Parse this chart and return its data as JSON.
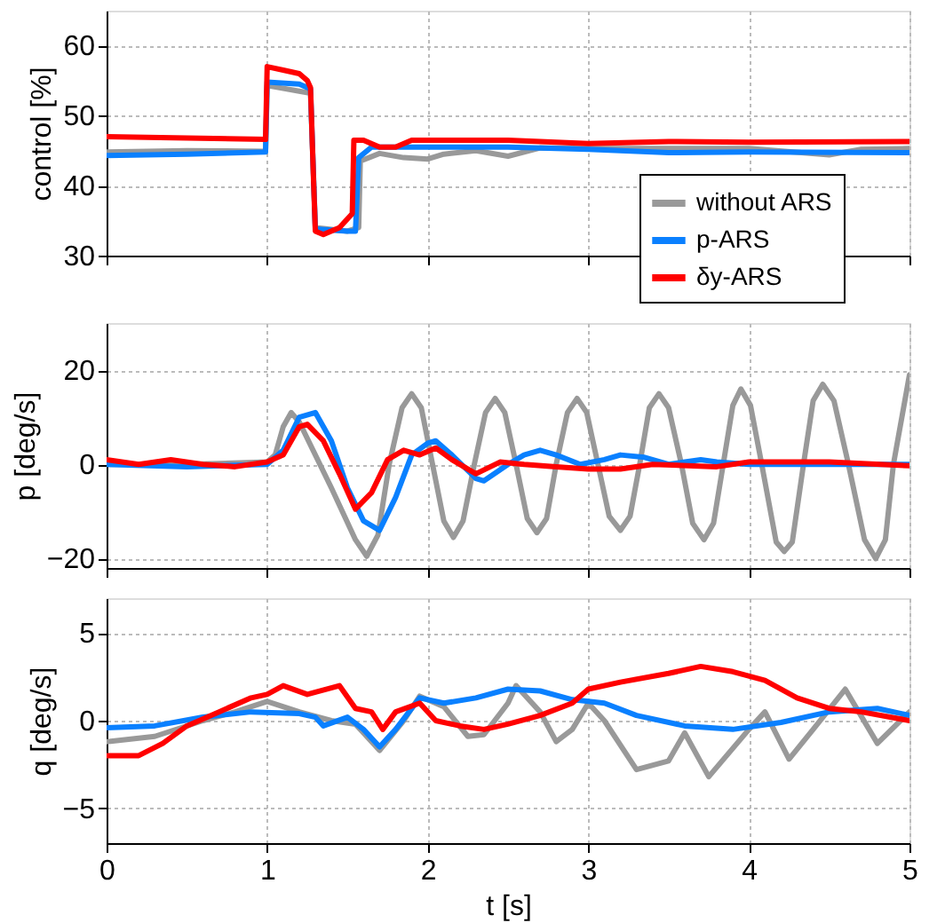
{
  "chart_data": [
    {
      "type": "line",
      "ylabel": "control [%]",
      "xlim": [
        0,
        5
      ],
      "xticks": [
        0,
        1,
        2,
        3,
        4,
        5
      ],
      "ylim": [
        30,
        65
      ],
      "yticks": [
        30,
        40,
        50,
        60
      ],
      "grid": true,
      "legend": "bottom right",
      "tick_labels": "y",
      "series": [
        {
          "name": "without ARS",
          "color": "#999999",
          "x": [
            0,
            0.5,
            0.99,
            1.0,
            1.2,
            1.27,
            1.3,
            1.5,
            1.57,
            1.58,
            1.7,
            1.85,
            2.0,
            2.1,
            2.3,
            2.5,
            2.7,
            3,
            3.5,
            4,
            4.5,
            4.7,
            5
          ],
          "values": [
            44.8,
            45,
            44.9,
            54.3,
            53.5,
            53.2,
            34,
            33.5,
            34,
            43.5,
            44.6,
            44,
            43.8,
            44.5,
            45,
            44.2,
            45.4,
            45.3,
            45.3,
            45.3,
            44.4,
            45.2,
            45.3
          ]
        },
        {
          "name": "p-ARS",
          "color": "#0a80ff",
          "x": [
            0,
            0.5,
            0.99,
            1.0,
            1.2,
            1.27,
            1.3,
            1.5,
            1.55,
            1.57,
            1.65,
            2,
            2.5,
            3,
            3.5,
            4,
            5
          ],
          "values": [
            44.3,
            44.5,
            44.8,
            54.8,
            54.5,
            53.8,
            33.8,
            33.5,
            33.5,
            44,
            45.5,
            45.5,
            45.5,
            45.2,
            44.7,
            44.8,
            44.7
          ]
        },
        {
          "name": "δy-ARS",
          "color": "#ff0000",
          "x": [
            0,
            0.5,
            0.99,
            1.0,
            1.1,
            1.2,
            1.25,
            1.27,
            1.29,
            1.3,
            1.35,
            1.45,
            1.53,
            1.54,
            1.6,
            1.7,
            1.8,
            1.9,
            2.5,
            3,
            3.5,
            4,
            5
          ],
          "values": [
            47,
            46.8,
            46.6,
            57,
            56.5,
            56,
            55,
            54,
            40,
            33.5,
            33,
            34,
            36,
            46.5,
            46.5,
            45.5,
            45.5,
            46.5,
            46.5,
            46,
            46.3,
            46.2,
            46.3
          ]
        }
      ]
    },
    {
      "type": "line",
      "ylabel": "p [deg/s]",
      "xlim": [
        0,
        5
      ],
      "xticks": [
        0,
        1,
        2,
        3,
        4,
        5
      ],
      "ylim": [
        -22,
        30
      ],
      "yticks": [
        -20,
        0,
        20
      ],
      "grid": true,
      "tick_labels": "y",
      "series": [
        {
          "color": "#999999",
          "x": [
            0,
            0.5,
            1.0,
            1.05,
            1.1,
            1.15,
            1.2,
            1.4,
            1.55,
            1.62,
            1.69,
            1.76,
            1.84,
            1.9,
            1.96,
            2.03,
            2.1,
            2.16,
            2.22,
            2.29,
            2.36,
            2.42,
            2.48,
            2.55,
            2.62,
            2.68,
            2.74,
            2.8,
            2.87,
            2.93,
            2.99,
            3.06,
            3.13,
            3.2,
            3.26,
            3.32,
            3.38,
            3.44,
            3.5,
            3.58,
            3.65,
            3.72,
            3.78,
            3.84,
            3.9,
            3.95,
            4.01,
            4.08,
            4.17,
            4.22,
            4.27,
            4.34,
            4.4,
            4.46,
            4.53,
            4.62,
            4.72,
            4.79,
            4.85,
            4.9,
            5
          ],
          "values": [
            0,
            0,
            0.5,
            2,
            8,
            11,
            9,
            -5,
            -16,
            -19.5,
            -15,
            0,
            12,
            15,
            12,
            0,
            -12,
            -15.5,
            -12,
            0,
            11,
            14,
            11,
            0,
            -11.5,
            -14.5,
            -11.5,
            0,
            11,
            14,
            11,
            0,
            -11,
            -14,
            -11,
            0,
            12,
            15,
            12,
            0,
            -12.5,
            -16,
            -12.5,
            0,
            12.5,
            16,
            12.5,
            0,
            -16.5,
            -18.5,
            -16.5,
            0,
            13.5,
            17,
            13.5,
            0,
            -16,
            -20,
            -16,
            0,
            19
          ]
        },
        {
          "color": "#0a80ff",
          "x": [
            0,
            0.5,
            1.0,
            1.1,
            1.2,
            1.3,
            1.4,
            1.5,
            1.6,
            1.7,
            1.8,
            1.9,
            2.0,
            2.05,
            2.15,
            2.3,
            2.35,
            2.5,
            2.6,
            2.7,
            2.8,
            2.95,
            3.1,
            3.2,
            3.35,
            3.5,
            3.7,
            3.8,
            4,
            4.5,
            5
          ],
          "values": [
            0,
            -0.5,
            0,
            3,
            10,
            11,
            5,
            -5,
            -12,
            -14,
            -7,
            2,
            4.5,
            5,
            2,
            -3,
            -3.5,
            0,
            2,
            3,
            2,
            0,
            1,
            2,
            1.5,
            0,
            1,
            0.5,
            0,
            0,
            0
          ]
        },
        {
          "color": "#ff0000",
          "x": [
            0,
            0.2,
            0.4,
            0.6,
            0.8,
            1.0,
            1.1,
            1.2,
            1.25,
            1.35,
            1.45,
            1.55,
            1.65,
            1.75,
            1.85,
            1.95,
            2.05,
            2.15,
            2.3,
            2.45,
            2.6,
            2.8,
            3.0,
            3.2,
            3.4,
            3.8,
            4,
            4.5,
            5
          ],
          "values": [
            1,
            0,
            1,
            0,
            -0.5,
            0.5,
            2,
            8,
            8.5,
            5,
            -2,
            -9.5,
            -6,
            1,
            3,
            2,
            3.5,
            1,
            -2,
            0.5,
            0,
            -0.5,
            -1,
            -1,
            0,
            -0.5,
            0.5,
            0.5,
            -0.3
          ]
        }
      ]
    },
    {
      "type": "line",
      "xlabel": "t [s]",
      "ylabel": "q [deg/s]",
      "xlim": [
        0,
        5
      ],
      "xticks": [
        0,
        1,
        2,
        3,
        4,
        5
      ],
      "ylim": [
        -7,
        7
      ],
      "yticks": [
        -5,
        0,
        5
      ],
      "grid": true,
      "series": [
        {
          "color": "#999999",
          "x": [
            0,
            0.3,
            0.6,
            0.8,
            1.0,
            1.2,
            1.4,
            1.55,
            1.7,
            1.85,
            1.95,
            2.1,
            2.25,
            2.35,
            2.5,
            2.55,
            2.7,
            2.8,
            2.9,
            3.0,
            3.1,
            3.3,
            3.5,
            3.6,
            3.75,
            4.0,
            4.1,
            4.25,
            4.4,
            4.6,
            4.8,
            5
          ],
          "values": [
            -1.2,
            -0.9,
            0,
            0.5,
            1.1,
            0.5,
            0,
            -0.2,
            -1.7,
            0,
            1.4,
            0.8,
            -0.9,
            -0.8,
            1,
            2,
            0.5,
            -1.2,
            -0.5,
            1,
            0,
            -2.8,
            -2.3,
            -0.7,
            -3.2,
            -0.5,
            0.5,
            -2.2,
            -0.5,
            1.8,
            -1.3,
            0.5
          ]
        },
        {
          "color": "#0a80ff",
          "x": [
            0,
            0.3,
            0.6,
            0.9,
            1.2,
            1.3,
            1.35,
            1.5,
            1.6,
            1.7,
            1.8,
            1.95,
            2.1,
            2.3,
            2.5,
            2.7,
            2.9,
            3.1,
            3.3,
            3.6,
            3.9,
            4.2,
            4.5,
            4.8,
            5
          ],
          "values": [
            -0.4,
            -0.3,
            0.2,
            0.5,
            0.4,
            0.2,
            -0.3,
            0.2,
            -0.5,
            -1.5,
            -0.5,
            1.3,
            1,
            1.3,
            1.8,
            1.7,
            1.2,
            1,
            0.3,
            -0.3,
            -0.5,
            -0.1,
            0.5,
            0.7,
            0.3
          ]
        },
        {
          "color": "#ff0000",
          "x": [
            0,
            0.2,
            0.35,
            0.5,
            0.7,
            0.9,
            1.0,
            1.1,
            1.25,
            1.45,
            1.55,
            1.65,
            1.72,
            1.8,
            1.95,
            2.05,
            2.2,
            2.35,
            2.5,
            2.7,
            2.9,
            3.0,
            3.2,
            3.5,
            3.7,
            3.9,
            4.1,
            4.3,
            4.5,
            4.7,
            5
          ],
          "values": [
            -2,
            -2,
            -1.3,
            -0.3,
            0.5,
            1.3,
            1.5,
            2,
            1.5,
            2,
            0.7,
            0.5,
            -0.5,
            0.5,
            1,
            0,
            -0.3,
            -0.5,
            -0.2,
            0.3,
            1,
            1.8,
            2.2,
            2.7,
            3.1,
            2.8,
            2.3,
            1.3,
            0.7,
            0.5,
            0
          ]
        }
      ]
    }
  ]
}
